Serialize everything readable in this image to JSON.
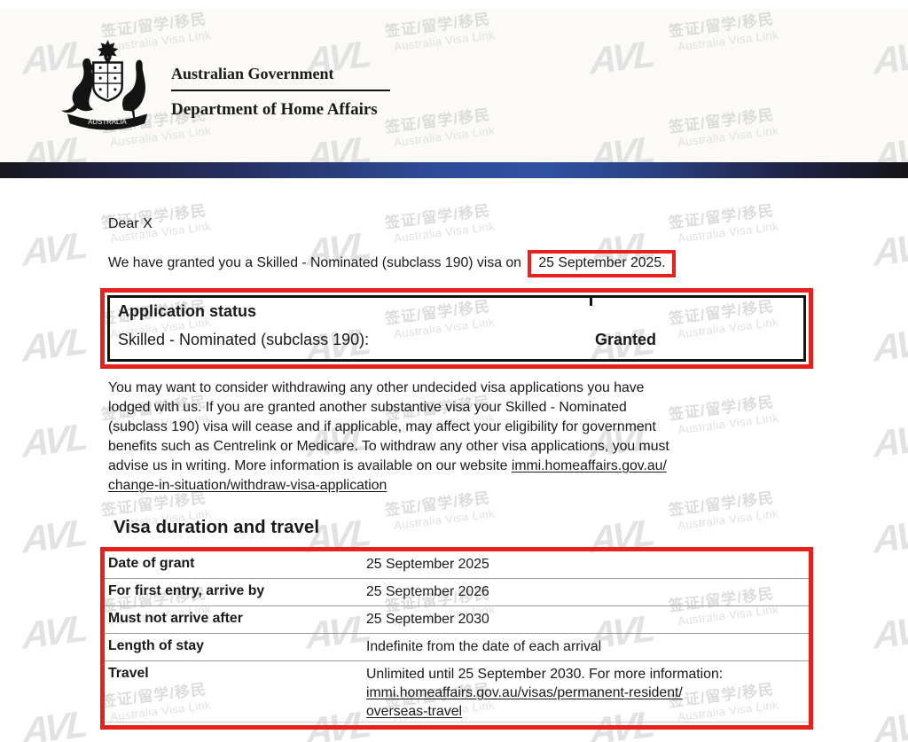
{
  "header": {
    "gov_title": "Australian Government",
    "dept_title": "Department of Home Affairs",
    "crest_banner": "AUSTRALIA"
  },
  "letter": {
    "salutation": "Dear X",
    "grant_sentence_prefix": "We have granted you a Skilled - Nominated (subclass 190) visa on",
    "grant_date_highlight": "25 September 2025.",
    "application_status": {
      "heading": "Application status",
      "item_label": "Skilled - Nominated (subclass 190):",
      "status_value": "Granted"
    },
    "withdraw_paragraph": {
      "lines": [
        [
          {
            "t": "You may want to consider withdrawing any other undecided visa applications you have"
          }
        ],
        [
          {
            "t": "lodged with us. If you are granted another substantive visa your Skilled - Nominated"
          }
        ],
        [
          {
            "t": "(subclass 190) visa will cease and if applicable, may affect your eligibility for government"
          }
        ],
        [
          {
            "t": "benefits such as Centrelink or Medicare. To withdraw any other visa applications, you must"
          }
        ],
        [
          {
            "t": "advise us in writing. More information is available on our website "
          },
          {
            "t": "immi.homeaffairs.gov.au/",
            "u": true
          }
        ],
        [
          {
            "t": "change-in-situation/withdraw-visa-application",
            "u": true
          }
        ]
      ]
    },
    "visa_section": {
      "heading": "Visa duration and travel",
      "rows": [
        {
          "label": "Date of grant",
          "value_lines": [
            [
              {
                "t": "25 September 2025"
              }
            ]
          ]
        },
        {
          "label": "For first entry, arrive by",
          "value_lines": [
            [
              {
                "t": "25 September 2026"
              }
            ]
          ]
        },
        {
          "label": "Must not arrive after",
          "value_lines": [
            [
              {
                "t": "25 September 2030"
              }
            ]
          ]
        },
        {
          "label": "Length of stay",
          "value_lines": [
            [
              {
                "t": "Indefinite from the date of each arrival"
              }
            ]
          ]
        },
        {
          "label": "Travel",
          "value_lines": [
            [
              {
                "t": "Unlimited until 25 September 2030. For more information:"
              }
            ],
            [
              {
                "t": "immi.homeaffairs.gov.au/visas/permanent-resident/",
                "u": true
              }
            ],
            [
              {
                "t": "overseas-travel",
                "u": true
              }
            ]
          ]
        }
      ]
    }
  },
  "watermark": {
    "logo_text": "AVL",
    "line1": "签证/留学/移民",
    "line2": "Australia Visa Link"
  },
  "colors": {
    "highlight_red": "#e8211c",
    "bar_blue": "#3052a2",
    "watermark_gray": "#e0e0e0"
  }
}
